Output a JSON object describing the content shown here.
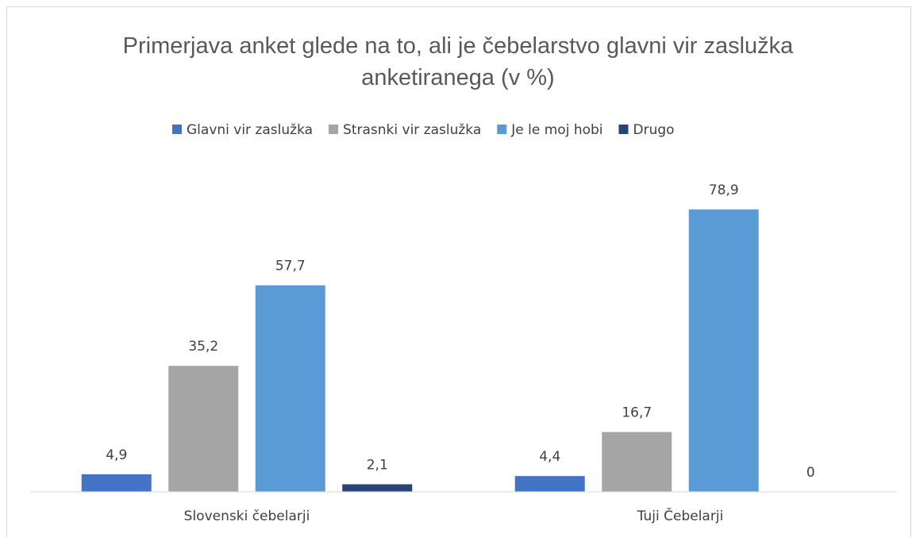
{
  "chart_data": {
    "type": "bar",
    "title": "Primerjava anket glede na to, ali je čebelarstvo glavni vir zaslužka anketiranega (v %)",
    "categories": [
      "Slovenski čebelarji",
      "Tuji Čebelarji"
    ],
    "series": [
      {
        "name": "Glavni vir zaslužka",
        "color": "#4472c4",
        "values": [
          4.9,
          4.4
        ],
        "value_labels": [
          "4,9",
          "4,4"
        ]
      },
      {
        "name": "Strasnki vir zaslužka",
        "color": "#a5a5a5",
        "values": [
          35.2,
          16.7
        ],
        "value_labels": [
          "35,2",
          "16,7"
        ]
      },
      {
        "name": "Je le moj hobi",
        "color": "#5b9bd5",
        "values": [
          57.7,
          78.9
        ],
        "value_labels": [
          "57,7",
          "78,9"
        ]
      },
      {
        "name": "Drugo",
        "color": "#264478",
        "values": [
          2.1,
          0
        ],
        "value_labels": [
          "2,1",
          "0"
        ]
      }
    ],
    "ylim": [
      0,
      90
    ],
    "legend": "top",
    "grid": false
  }
}
